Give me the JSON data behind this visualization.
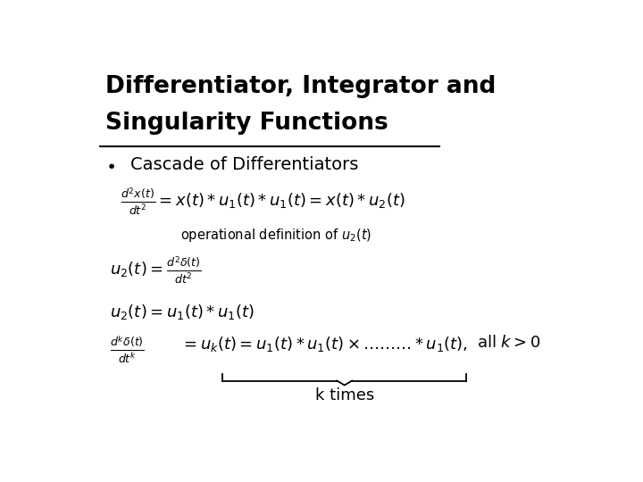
{
  "background_color": "#ffffff",
  "title_line1": "Differentiator, Integrator and",
  "title_line2": "Singularity Functions",
  "bullet": "Cascade of Differentiators",
  "k_times": "k times"
}
